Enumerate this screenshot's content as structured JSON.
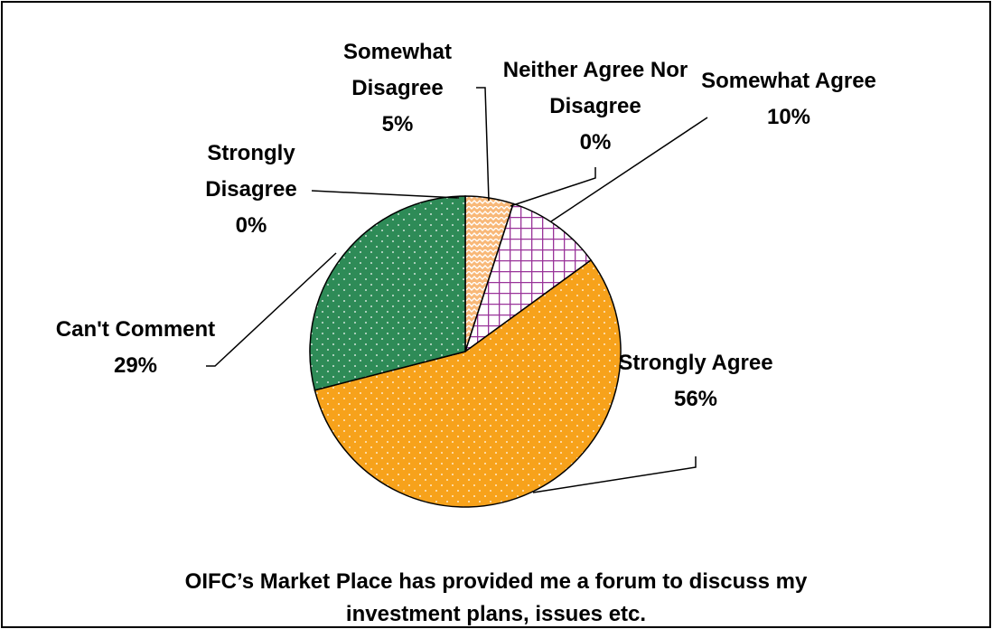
{
  "chart_data": {
    "type": "pie",
    "title": "OIFC’s Market Place has provided me a forum to discuss my investment plans, issues etc.",
    "categories": [
      "Strongly Disagree",
      "Somewhat Disagree",
      "Neither Agree Nor Disagree",
      "Somewhat Agree",
      "Strongly Agree",
      "Can't Comment"
    ],
    "values": [
      0,
      5,
      0,
      10,
      56,
      29
    ],
    "value_labels": [
      "0%",
      "5%",
      "0%",
      "10%",
      "56%",
      "29%"
    ],
    "colors": [
      "#1f4e9a",
      "#f8b878",
      "#ffffff",
      "#993399",
      "#f7a21b",
      "#2e8b57"
    ]
  }
}
